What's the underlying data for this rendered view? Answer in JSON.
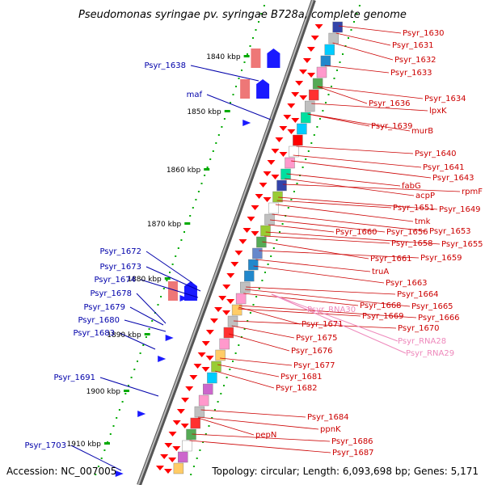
{
  "title": "Pseudomonas syringae pv. syringae B728a, complete genome",
  "accession": "Accession: NC_007005",
  "topology": "Topology: circular; Length: 6,093,698 bp; Genes: 5,171",
  "colors": {
    "left_labels": "#0000aa",
    "right_labels": "#cc0000",
    "rna_labels": "#ee88bb",
    "backbone": "#9a9a9a",
    "tick": "#00aa00",
    "forward_arrow": "#1a1aff",
    "reverse_arrow": "#ff0000"
  },
  "kbp_markers": [
    "1840 kbp",
    "1850 kbp",
    "1860 kbp",
    "1870 kbp",
    "1880 kbp",
    "1890 kbp",
    "1900 kbp",
    "1910 kbp"
  ],
  "left_genes": [
    "Psyr_1638",
    "maf",
    "Psyr_1672",
    "Psyr_1673",
    "Psyr_1674",
    "Psyr_1678",
    "Psyr_1679",
    "Psyr_1680",
    "Psyr_1683",
    "Psyr_1691",
    "Psyr_1703"
  ],
  "right_genes": [
    "Psyr_1630",
    "Psyr_1631",
    "Psyr_1632",
    "Psyr_1633",
    "Psyr_1634",
    "Psyr_1636",
    "lpxK",
    "Psyr_1639",
    "murB",
    "Psyr_1640",
    "Psyr_1641",
    "Psyr_1643",
    "rpmF",
    "fabG",
    "acpP",
    "Psyr_1651",
    "Psyr_1649",
    "tmk",
    "Psyr_1660",
    "Psyr_1656",
    "Psyr_1653",
    "Psyr_1658",
    "Psyr_1655",
    "Psyr_1661",
    "Psyr_1659",
    "truA",
    "Psyr_1663",
    "Psyr_1664",
    "Psyr_1668",
    "Psyr_1665",
    "Psyr_1669",
    "Psyr_1666",
    "Psyr_1671",
    "Psyr_1670",
    "Psyr_1675",
    "Psyr_1676",
    "Psyr_1677",
    "Psyr_1681",
    "Psyr_1682",
    "Psyr_1684",
    "ppnK",
    "pepN",
    "Psyr_1686",
    "Psyr_1687"
  ],
  "rna_genes": [
    "Psyr_RNA30",
    "Psyr_RNA28",
    "Psyr_RNA29"
  ]
}
